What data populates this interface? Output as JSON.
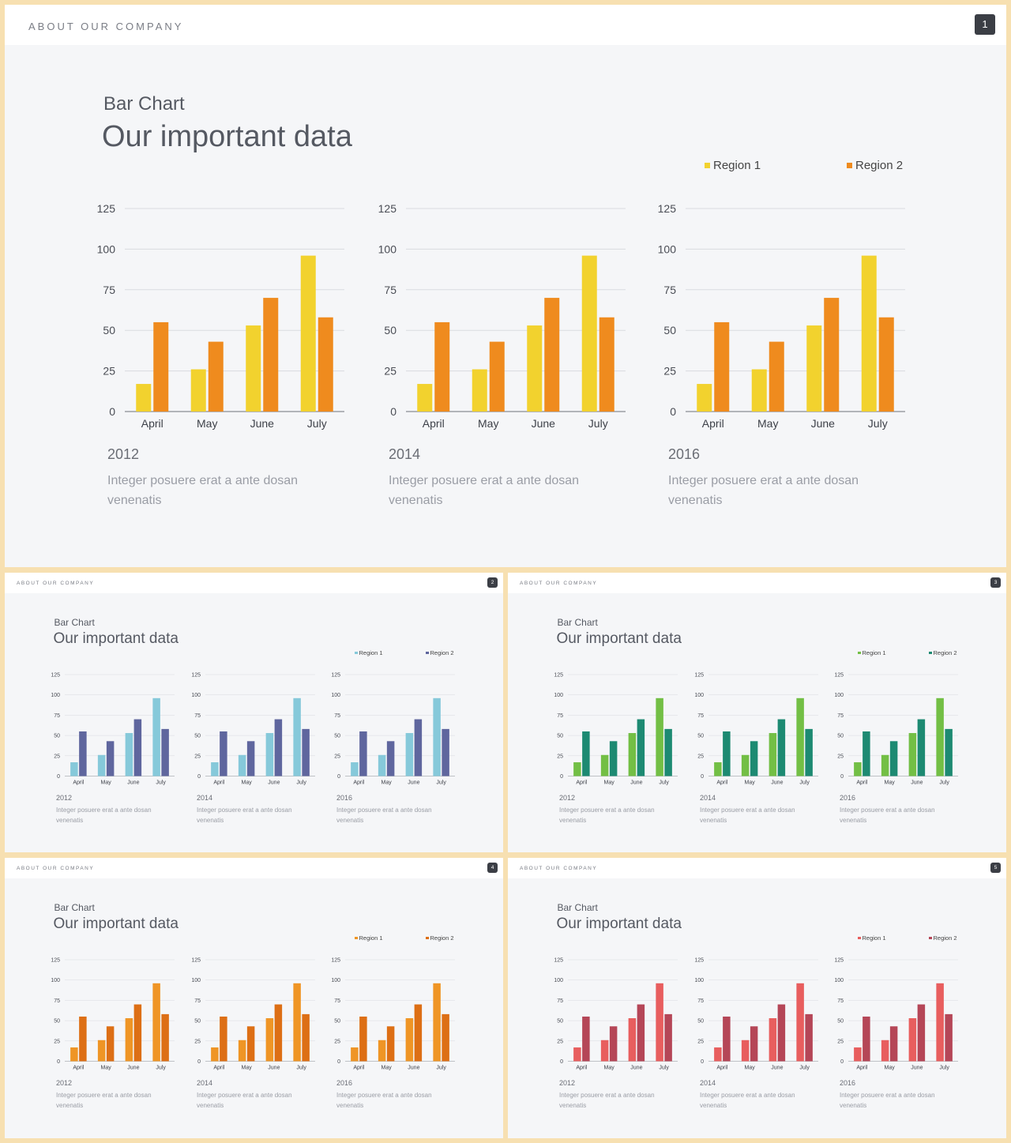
{
  "header": {
    "label": "ABOUT OUR COMPANY"
  },
  "subtitle": "Bar Chart",
  "title": "Our important data",
  "legend": [
    "Region 1",
    "Region 2"
  ],
  "description": "Integer posuere erat a ante dosan venenatis",
  "slides": [
    {
      "page": "1",
      "colors": [
        "#f2d22e",
        "#ef8b1e"
      ]
    },
    {
      "page": "2",
      "colors": [
        "#86c9da",
        "#5f669e"
      ]
    },
    {
      "page": "3",
      "colors": [
        "#73bf45",
        "#1d8a72"
      ]
    },
    {
      "page": "4",
      "colors": [
        "#ef9525",
        "#dd6f15"
      ]
    },
    {
      "page": "5",
      "colors": [
        "#e85e5e",
        "#b54657"
      ]
    }
  ],
  "chart_data": [
    {
      "type": "bar",
      "title": "2012",
      "categories": [
        "April",
        "May",
        "June",
        "July"
      ],
      "series": [
        {
          "name": "Region 1",
          "values": [
            17,
            26,
            53,
            96
          ]
        },
        {
          "name": "Region 2",
          "values": [
            55,
            43,
            70,
            58
          ]
        }
      ],
      "yticks": [
        "0",
        "25",
        "50",
        "75",
        "100",
        "125"
      ],
      "ylim": [
        0,
        125
      ],
      "grid": true,
      "legend_position": "top-right"
    },
    {
      "type": "bar",
      "title": "2014",
      "categories": [
        "April",
        "May",
        "June",
        "July"
      ],
      "series": [
        {
          "name": "Region 1",
          "values": [
            17,
            26,
            53,
            96
          ]
        },
        {
          "name": "Region 2",
          "values": [
            55,
            43,
            70,
            58
          ]
        }
      ],
      "yticks": [
        "0",
        "25",
        "50",
        "75",
        "100",
        "125"
      ],
      "ylim": [
        0,
        125
      ],
      "grid": true,
      "legend_position": "top-right"
    },
    {
      "type": "bar",
      "title": "2016",
      "categories": [
        "April",
        "May",
        "June",
        "July"
      ],
      "series": [
        {
          "name": "Region 1",
          "values": [
            17,
            26,
            53,
            96
          ]
        },
        {
          "name": "Region 2",
          "values": [
            55,
            43,
            70,
            58
          ]
        }
      ],
      "yticks": [
        "0",
        "25",
        "50",
        "75",
        "100",
        "125"
      ],
      "ylim": [
        0,
        125
      ],
      "grid": true,
      "legend_position": "top-right"
    }
  ]
}
